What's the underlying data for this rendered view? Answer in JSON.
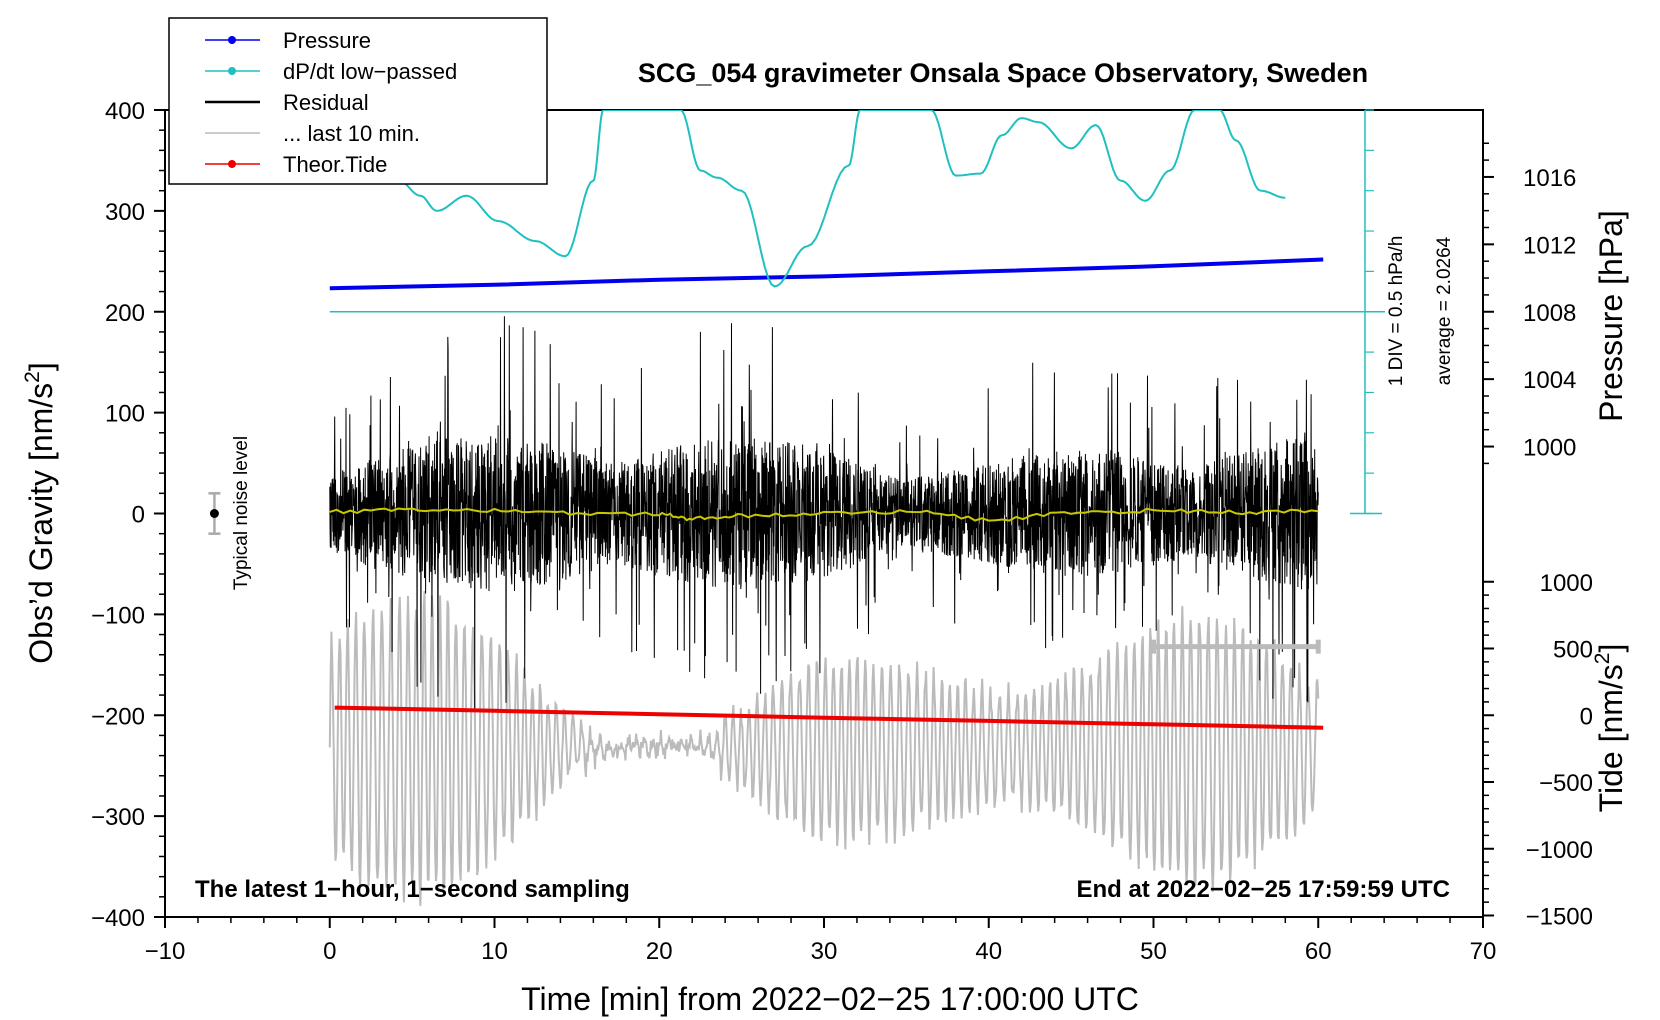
{
  "chart_data": {
    "type": "line",
    "title": "SCG_054 gravimeter Onsala Space Observatory, Sweden",
    "xlabel": "Time [min] from 2022−02−25 17:00:00 UTC",
    "ylabel_left": "Obs’d Gravity [nm/s²]",
    "ylabel_left_base": "Obs’d Gravity [nm/s",
    "ylabel_left_suffix": "]",
    "ylabel_pressure": "Pressure [hPa]",
    "ylabel_tide_base": "Tide [nm/s",
    "ylabel_tide_suffix": "]",
    "xlim": [
      -10,
      70
    ],
    "ylim_left": [
      -400,
      400
    ],
    "x_ticks": [
      "−10",
      "0",
      "10",
      "20",
      "30",
      "40",
      "50",
      "60",
      "70"
    ],
    "y_ticks_left": [
      "400",
      "300",
      "200",
      "100",
      "0",
      "−100",
      "−200",
      "−300",
      "−400"
    ],
    "pressure_ticks": [
      "1016",
      "1012",
      "1008",
      "1004",
      "1000"
    ],
    "tide_ticks": [
      "1000",
      "500",
      "0",
      "−500",
      "−1000",
      "−1500"
    ],
    "pressure_scale_label": "1 DIV = 0.5 hPa/h",
    "pressure_average_label": "average = 2.0264",
    "noise_label": "Typical noise level",
    "bottom_left_note": "The latest 1−hour, 1−second sampling",
    "bottom_right_note": "End at 2022−02−25 17:59:59 UTC",
    "colors": {
      "pressure": "#0000ee",
      "dpdt": "#20c0c0",
      "residual": "#000000",
      "last10": "#bbbbbb",
      "tide": "#ee0000",
      "smoothed": "#c8c800"
    },
    "legend": [
      {
        "label": "Pressure",
        "color": "#0000ee",
        "marker": true
      },
      {
        "label": "dP/dt low−passed",
        "color": "#20c0c0",
        "marker": true
      },
      {
        "label": "Residual",
        "color": "#000000",
        "marker": false
      },
      {
        "label": "... last 10 min.",
        "color": "#bbbbbb",
        "marker": false
      },
      {
        "label": "Theor.Tide",
        "color": "#ee0000",
        "marker": true
      }
    ],
    "series": [
      {
        "name": "Pressure",
        "unit": "hPa",
        "x": [
          0,
          10,
          20,
          30,
          40,
          50,
          60.3
        ],
        "values": [
          1009.4,
          1009.6,
          1009.9,
          1010.1,
          1010.4,
          1010.7,
          1011.1
        ]
      },
      {
        "name": "dP/dt low-passed",
        "unit": "nm/s2 display",
        "x": [
          4.2,
          5.5,
          6.5,
          8.3,
          10.2,
          12.5,
          14.3,
          16.0,
          16.6,
          21.3,
          22.5,
          23.5,
          25.0,
          27.0,
          29.0,
          31.5,
          32.2,
          36.5,
          38.0,
          39.5,
          40.8,
          42.0,
          43.0,
          45.0,
          46.5,
          48.0,
          49.5,
          51.0,
          52.5,
          54.0,
          55.0,
          56.5,
          58.0
        ],
        "values": [
          330,
          315,
          300,
          315,
          290,
          270,
          255,
          330,
          400,
          400,
          340,
          333,
          320,
          225,
          265,
          345,
          400,
          400,
          335,
          337,
          375,
          392,
          388,
          362,
          385,
          330,
          310,
          340,
          400,
          400,
          370,
          320,
          313
        ]
      },
      {
        "name": "Residual smoothed",
        "unit": "nm/s2",
        "x": [
          0,
          5,
          10,
          15,
          20,
          22,
          25,
          30,
          35,
          40,
          45,
          50,
          55,
          60
        ],
        "values": [
          2,
          4,
          3,
          0,
          -1,
          -5,
          -2,
          0,
          2,
          -6,
          0,
          3,
          1,
          3
        ]
      },
      {
        "name": "Theor.Tide",
        "unit": "nm/s2",
        "x": [
          0.3,
          10,
          20,
          30,
          40,
          50,
          60.3
        ],
        "values": [
          57,
          33,
          8,
          -18,
          -42,
          -68,
          -93
        ]
      }
    ],
    "noise_bar": {
      "x": -7,
      "y": 0,
      "error": 20
    },
    "last10_bar": {
      "x_start": 50,
      "x_end": 60,
      "y": -132
    }
  }
}
